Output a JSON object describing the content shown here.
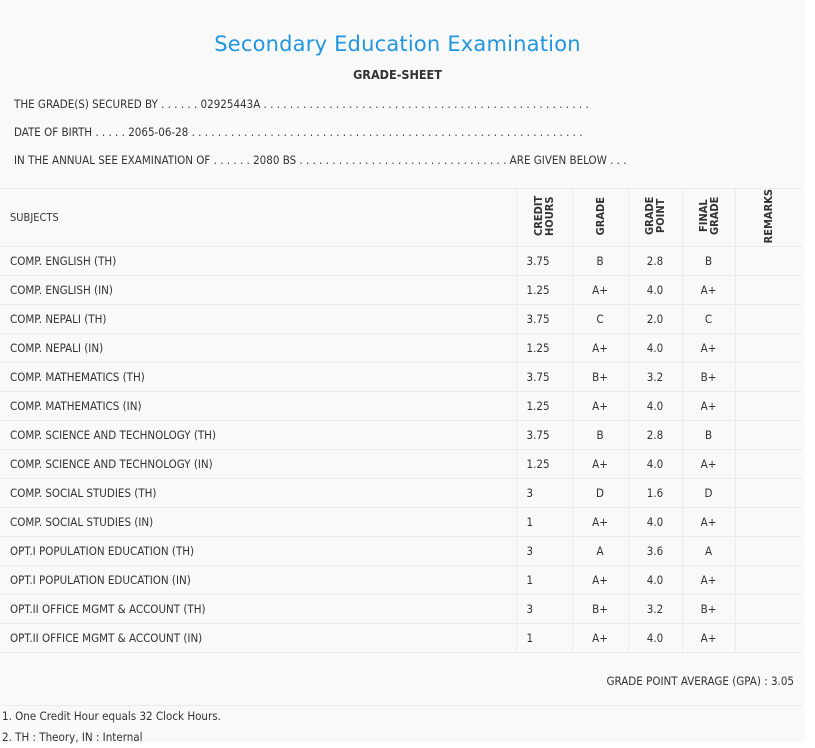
{
  "title": "Secondary Education Examination",
  "subtitle": "GRADE-SHEET",
  "info": {
    "secured_by": "THE GRADE(S) SECURED BY . . . . . . 02925443A . . . . . . . . . . . . . . . . . . . . . . . . . . . . . . . . . . . . . . . . . . . . . . . . . .",
    "dob": "DATE OF BIRTH . . . . . 2065-06-28 . . . . . . . . . . . . . . . . . . . . . . . . . . . . . . . . . . . . . . . . . . . . . . . . . . . . . . . . . . . .",
    "exam": "IN THE ANNUAL SEE EXAMINATION OF . . . . . . 2080 BS . . . . . . . . . . . . . . . . . . . . . . . . . . . . . . . . ARE GIVEN BELOW . . ."
  },
  "table": {
    "headers": {
      "subjects": "SUBJECTS",
      "credit": "CREDIT HOURS",
      "grade": "GRADE",
      "grade_point": "GRADE POINT",
      "final_grade": "FINAL GRADE",
      "remarks": "REMARKS"
    },
    "rows": [
      {
        "subject": "COMP. ENGLISH (TH)",
        "credit": "3.75",
        "grade": "B",
        "gp": "2.8",
        "final": "B"
      },
      {
        "subject": "COMP. ENGLISH (IN)",
        "credit": "1.25",
        "grade": "A+",
        "gp": "4.0",
        "final": "A+"
      },
      {
        "subject": "COMP. NEPALI (TH)",
        "credit": "3.75",
        "grade": "C",
        "gp": "2.0",
        "final": "C"
      },
      {
        "subject": "COMP. NEPALI (IN)",
        "credit": "1.25",
        "grade": "A+",
        "gp": "4.0",
        "final": "A+"
      },
      {
        "subject": "COMP. MATHEMATICS (TH)",
        "credit": "3.75",
        "grade": "B+",
        "gp": "3.2",
        "final": "B+"
      },
      {
        "subject": "COMP. MATHEMATICS (IN)",
        "credit": "1.25",
        "grade": "A+",
        "gp": "4.0",
        "final": "A+"
      },
      {
        "subject": "COMP. SCIENCE AND TECHNOLOGY (TH)",
        "credit": "3.75",
        "grade": "B",
        "gp": "2.8",
        "final": "B"
      },
      {
        "subject": "COMP. SCIENCE AND TECHNOLOGY (IN)",
        "credit": "1.25",
        "grade": "A+",
        "gp": "4.0",
        "final": "A+"
      },
      {
        "subject": "COMP. SOCIAL STUDIES (TH)",
        "credit": "3",
        "grade": "D",
        "gp": "1.6",
        "final": "D"
      },
      {
        "subject": "COMP. SOCIAL STUDIES (IN)",
        "credit": "1",
        "grade": "A+",
        "gp": "4.0",
        "final": "A+"
      },
      {
        "subject": "OPT.I POPULATION EDUCATION (TH)",
        "credit": "3",
        "grade": "A",
        "gp": "3.6",
        "final": "A"
      },
      {
        "subject": "OPT.I POPULATION EDUCATION (IN)",
        "credit": "1",
        "grade": "A+",
        "gp": "4.0",
        "final": "A+"
      },
      {
        "subject": "OPT.II OFFICE MGMT & ACCOUNT (TH)",
        "credit": "3",
        "grade": "B+",
        "gp": "3.2",
        "final": "B+"
      },
      {
        "subject": "OPT.II OFFICE MGMT & ACCOUNT (IN)",
        "credit": "1",
        "grade": "A+",
        "gp": "4.0",
        "final": "A+"
      }
    ],
    "gpa": "GRADE POINT AVERAGE (GPA) : 3.05"
  },
  "notes": [
    "1. One Credit Hour equals 32 Clock Hours.",
    "2. TH : Theory, IN : Internal"
  ]
}
